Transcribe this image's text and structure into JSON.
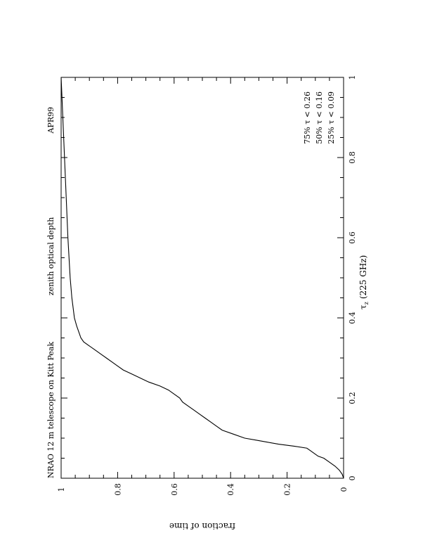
{
  "chart_data": {
    "type": "line",
    "title": "NRAO 12 m telescope on Kitt Peak",
    "subtitle": "zenith optical depth",
    "period": "APR99",
    "xlabel": "τ",
    "xlabel_sub": "z",
    "xlabel_suffix": "(225 GHz)",
    "ylabel": "fraction of time",
    "xlim": [
      0,
      1
    ],
    "ylim": [
      0,
      1
    ],
    "xticks": [
      "0",
      "0.2",
      "0.4",
      "0.6",
      "0.8",
      "1"
    ],
    "yticks": [
      "0",
      "0.2",
      "0.4",
      "0.6",
      "0.8",
      "1"
    ],
    "grid": false,
    "orientation": "rotated 90° counter-clockwise on page",
    "stats": [
      "75%  τ  <  0.26",
      "50%  τ  <  0.16",
      "25%  τ  <  0.09"
    ],
    "series": [
      {
        "x": [
          0,
          0.01,
          0.02,
          0.03,
          0.04,
          0.05,
          0.055,
          0.06,
          0.065,
          0.07,
          0.075,
          0.08,
          0.085,
          0.09,
          0.095,
          0.1,
          0.11,
          0.12,
          0.13,
          0.14,
          0.15,
          0.16,
          0.17,
          0.18,
          0.19,
          0.2,
          0.21,
          0.22,
          0.23,
          0.24,
          0.25,
          0.26,
          0.27,
          0.28,
          0.29,
          0.3,
          0.31,
          0.32,
          0.33,
          0.34,
          0.35,
          0.36,
          0.38,
          0.4,
          0.45,
          0.5,
          0.55,
          0.6,
          0.65,
          0.7,
          0.75,
          0.8,
          0.85,
          0.9,
          0.95,
          1.0
        ],
        "y": [
          0,
          0.005,
          0.015,
          0.03,
          0.05,
          0.07,
          0.09,
          0.1,
          0.11,
          0.12,
          0.13,
          0.175,
          0.23,
          0.27,
          0.31,
          0.35,
          0.39,
          0.43,
          0.45,
          0.47,
          0.49,
          0.51,
          0.53,
          0.55,
          0.57,
          0.58,
          0.6,
          0.62,
          0.65,
          0.69,
          0.72,
          0.75,
          0.78,
          0.8,
          0.82,
          0.84,
          0.86,
          0.88,
          0.9,
          0.92,
          0.93,
          0.935,
          0.945,
          0.953,
          0.962,
          0.968,
          0.972,
          0.976,
          0.979,
          0.982,
          0.985,
          0.988,
          0.991,
          0.994,
          0.997,
          1.0
        ]
      }
    ]
  }
}
